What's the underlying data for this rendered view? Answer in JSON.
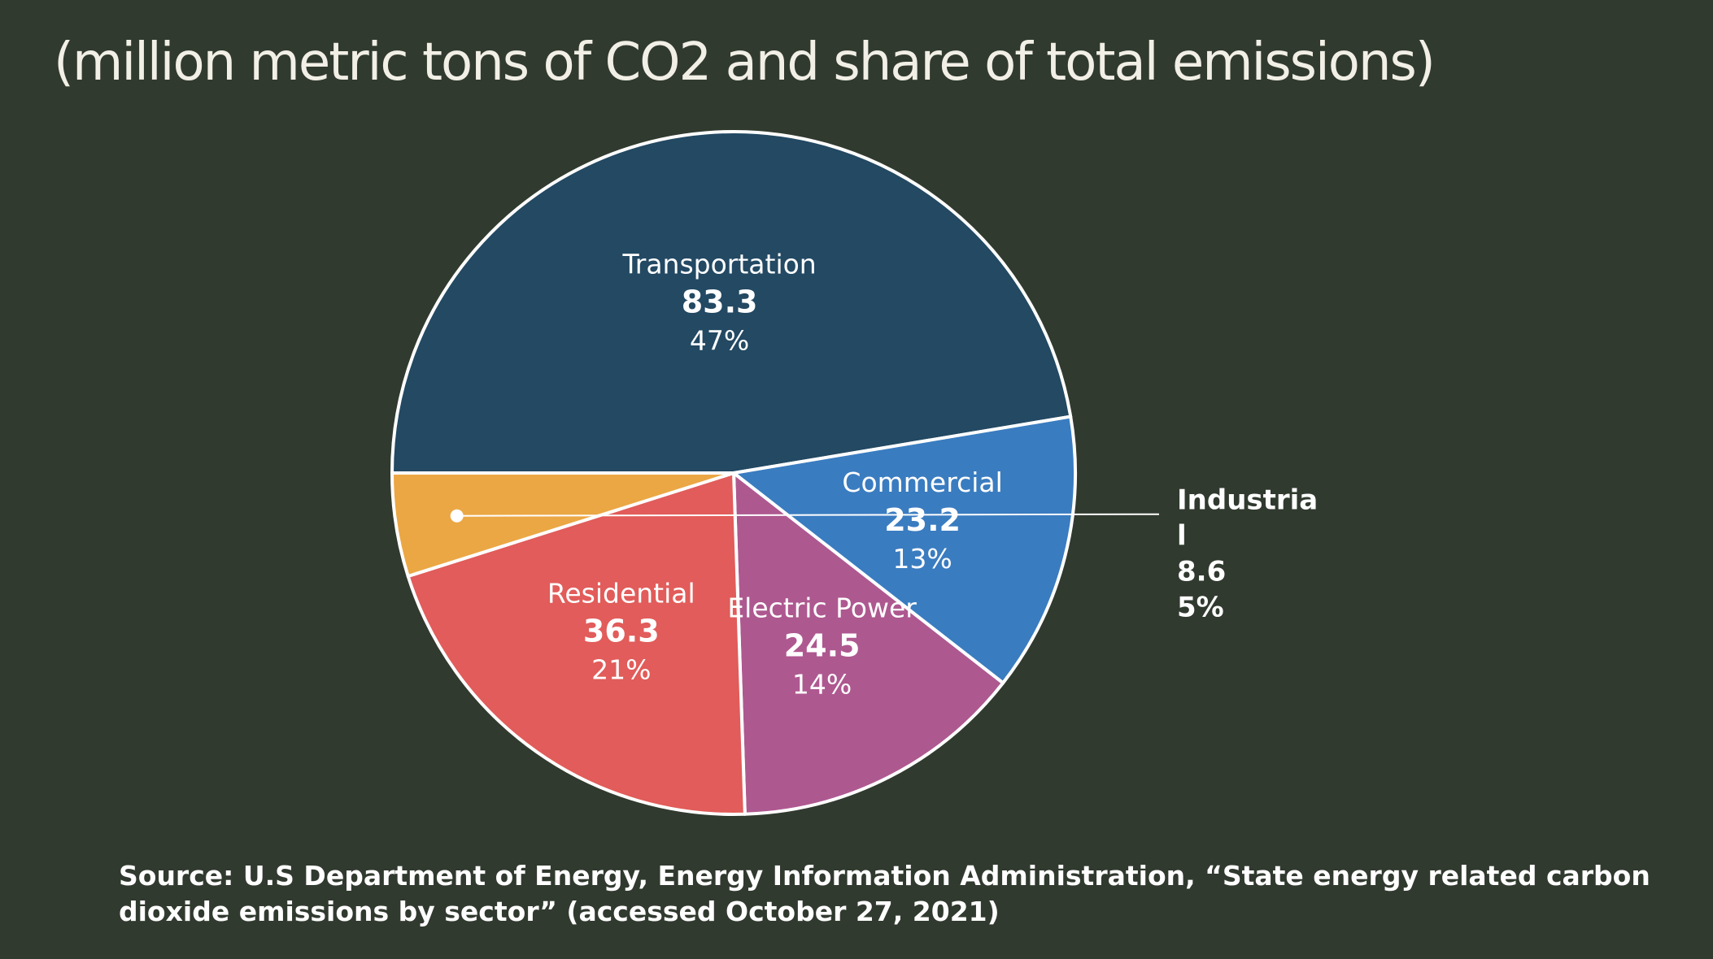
{
  "title": "(million metric tons of CO2 and share of total emissions)",
  "source": "Source: U.S Department of Energy, Energy Information Administration, “State energy related carbon dioxide emissions by sector” (accessed October 27, 2021)",
  "chart_data": {
    "type": "pie",
    "title": "(million metric tons of CO2 and share of total emissions)",
    "slices": [
      {
        "name": "Transportation",
        "value": 83.3,
        "value_label": "83.3",
        "percent": 47,
        "percent_label": "47%",
        "color": "#234963",
        "label_style": "inside"
      },
      {
        "name": "Commercial",
        "value": 23.2,
        "value_label": "23.2",
        "percent": 13,
        "percent_label": "13%",
        "color": "#3a7cc0",
        "label_style": "inside"
      },
      {
        "name": "Electric Power",
        "value": 24.5,
        "value_label": "24.5",
        "percent": 14,
        "percent_label": "14%",
        "color": "#ae5890",
        "label_style": "inside"
      },
      {
        "name": "Residential",
        "value": 36.3,
        "value_label": "36.3",
        "percent": 21,
        "percent_label": "21%",
        "color": "#e15c5a",
        "label_style": "inside"
      },
      {
        "name": "Industrial",
        "name_lines": [
          "Industria",
          "l"
        ],
        "value": 8.6,
        "value_label": "8.6",
        "percent": 5,
        "percent_label": "5%",
        "color": "#eba744",
        "label_style": "callout"
      }
    ]
  }
}
